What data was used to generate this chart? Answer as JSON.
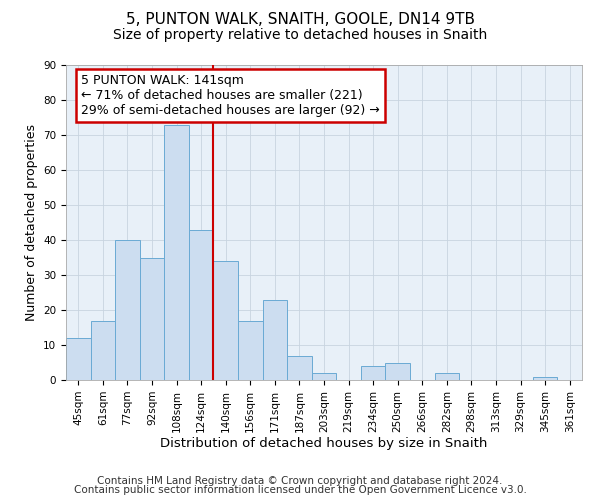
{
  "title": "5, PUNTON WALK, SNAITH, GOOLE, DN14 9TB",
  "subtitle": "Size of property relative to detached houses in Snaith",
  "xlabel": "Distribution of detached houses by size in Snaith",
  "ylabel": "Number of detached properties",
  "bins": [
    "45sqm",
    "61sqm",
    "77sqm",
    "92sqm",
    "108sqm",
    "124sqm",
    "140sqm",
    "156sqm",
    "171sqm",
    "187sqm",
    "203sqm",
    "219sqm",
    "234sqm",
    "250sqm",
    "266sqm",
    "282sqm",
    "298sqm",
    "313sqm",
    "329sqm",
    "345sqm",
    "361sqm"
  ],
  "values": [
    12,
    17,
    40,
    35,
    73,
    43,
    34,
    17,
    23,
    7,
    2,
    0,
    4,
    5,
    0,
    2,
    0,
    0,
    0,
    1,
    0
  ],
  "bar_color": "#ccddf0",
  "bar_edge_color": "#6aaad4",
  "redline_bin_index": 6,
  "ylim": [
    0,
    90
  ],
  "yticks": [
    0,
    10,
    20,
    30,
    40,
    50,
    60,
    70,
    80,
    90
  ],
  "annotation_line1": "5 PUNTON WALK: 141sqm",
  "annotation_line2": "← 71% of detached houses are smaller (221)",
  "annotation_line3": "29% of semi-detached houses are larger (92) →",
  "annotation_box_color": "#ffffff",
  "annotation_box_edge": "#cc0000",
  "footer1": "Contains HM Land Registry data © Crown copyright and database right 2024.",
  "footer2": "Contains public sector information licensed under the Open Government Licence v3.0.",
  "title_fontsize": 11,
  "subtitle_fontsize": 10,
  "xlabel_fontsize": 9.5,
  "ylabel_fontsize": 9,
  "tick_fontsize": 7.5,
  "footer_fontsize": 7.5,
  "annotation_fontsize": 9,
  "bg_color": "#e8f0f8",
  "grid_color": "#c8d4e0"
}
